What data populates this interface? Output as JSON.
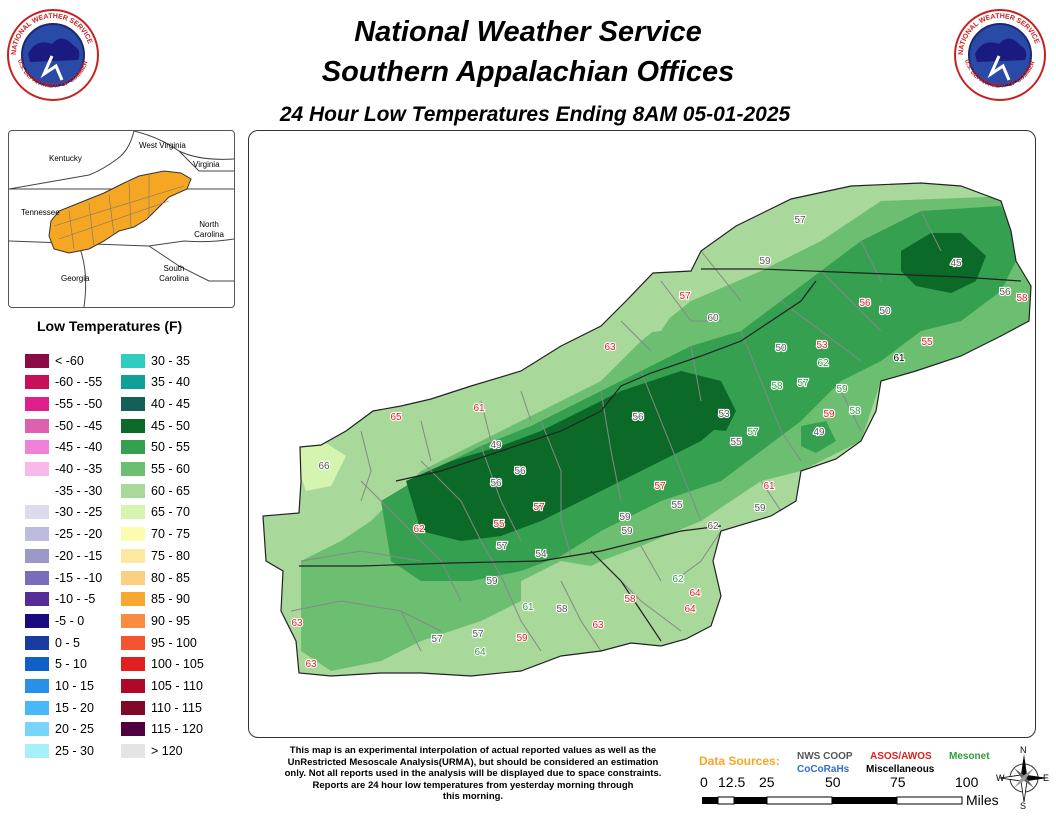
{
  "header": {
    "title_line1": "National Weather Service",
    "title_line2": "Southern Appalachian Offices",
    "subtitle": "24 Hour Low Temperatures Ending 8AM 05-01-2025",
    "logo_text_top": "NATIONAL WEATHER SERVICE",
    "logo_text_bottom": "U.S. DEPARTMENT OF COMMERCE"
  },
  "inset_map": {
    "labels": [
      "West Virginia",
      "Kentucky",
      "Virginia",
      "Tennessee",
      "North Carolina",
      "South Carolina",
      "Georgia"
    ],
    "highlight_color": "#f5a623"
  },
  "legend": {
    "title": "Low Temperatures (F)",
    "col1": [
      {
        "label": "< -60",
        "color": "#8a0a45"
      },
      {
        "label": "-60 - -55",
        "color": "#c8105a"
      },
      {
        "label": "-55 - -50",
        "color": "#e0208a"
      },
      {
        "label": "-50 - -45",
        "color": "#e060b0"
      },
      {
        "label": "-45 - -40",
        "color": "#f080d8"
      },
      {
        "label": "-40 - -35",
        "color": "#f8b8e8"
      },
      {
        "label": "-35 - -30",
        "color": "#ffffff"
      },
      {
        "label": "-30 - -25",
        "color": "#dcdcec"
      },
      {
        "label": "-25 - -20",
        "color": "#bcbcdc"
      },
      {
        "label": "-20 - -15",
        "color": "#9c98c8"
      },
      {
        "label": "-15 - -10",
        "color": "#7a6cbc"
      },
      {
        "label": "-10 - -5",
        "color": "#582c98"
      },
      {
        "label": "-5 - 0",
        "color": "#1a0a80"
      },
      {
        "label": "0 - 5",
        "color": "#1a3ca0"
      },
      {
        "label": "5 - 10",
        "color": "#1060c8"
      },
      {
        "label": "10 - 15",
        "color": "#2890e8"
      },
      {
        "label": "15 - 20",
        "color": "#48b8f8"
      },
      {
        "label": "20 - 25",
        "color": "#78d4f8"
      },
      {
        "label": "25 - 30",
        "color": "#a8f0f8"
      }
    ],
    "col2": [
      {
        "label": "30 - 35",
        "color": "#30ccc0"
      },
      {
        "label": "35 - 40",
        "color": "#10a098"
      },
      {
        "label": "40 - 45",
        "color": "#146058"
      },
      {
        "label": "45 - 50",
        "color": "#0c6a28"
      },
      {
        "label": "50 - 55",
        "color": "#34a050"
      },
      {
        "label": "55 - 60",
        "color": "#6cbe70"
      },
      {
        "label": "60 - 65",
        "color": "#a8d89a"
      },
      {
        "label": "65 - 70",
        "color": "#d4f4b0"
      },
      {
        "label": "70 - 75",
        "color": "#fcfcb0"
      },
      {
        "label": "75 - 80",
        "color": "#fce8a0"
      },
      {
        "label": "80 - 85",
        "color": "#fcd080"
      },
      {
        "label": "85 - 90",
        "color": "#f8a830"
      },
      {
        "label": "90 - 95",
        "color": "#f88c40"
      },
      {
        "label": "95 - 100",
        "color": "#f45430"
      },
      {
        "label": "100 - 105",
        "color": "#e02020"
      },
      {
        "label": "105 - 110",
        "color": "#b00828"
      },
      {
        "label": "110 - 115",
        "color": "#800828"
      },
      {
        "label": "115 - 120",
        "color": "#500040"
      },
      {
        "label": "> 120",
        "color": "#e4e4e4"
      }
    ]
  },
  "map": {
    "colors": {
      "t45": "#0c6a28",
      "t50": "#34a050",
      "t55": "#6cbe70",
      "t60": "#a8d89a",
      "t65": "#d4f4b0",
      "border": "#888888",
      "state": "#222222"
    },
    "observations": [
      {
        "v": "57",
        "src": "coop"
      },
      {
        "v": "59",
        "src": "coop"
      },
      {
        "v": "45",
        "src": "coop"
      },
      {
        "v": "56",
        "src": "coop"
      },
      {
        "v": "58",
        "src": "asos"
      },
      {
        "v": "57",
        "src": "asos"
      },
      {
        "v": "60",
        "src": "coop"
      },
      {
        "v": "56",
        "src": "asos"
      },
      {
        "v": "50",
        "src": "coop"
      },
      {
        "v": "63",
        "src": "asos"
      },
      {
        "v": "53",
        "src": "asos"
      },
      {
        "v": "55",
        "src": "asos"
      },
      {
        "v": "50",
        "src": "coop"
      },
      {
        "v": "62",
        "src": "mesonet"
      },
      {
        "v": "61",
        "src": "misc"
      },
      {
        "v": "58",
        "src": "mesonet"
      },
      {
        "v": "57",
        "src": "mesonet"
      },
      {
        "v": "59",
        "src": "mesonet"
      },
      {
        "v": "65",
        "src": "asos"
      },
      {
        "v": "61",
        "src": "asos"
      },
      {
        "v": "56",
        "src": "coop"
      },
      {
        "v": "53",
        "src": "coop"
      },
      {
        "v": "59",
        "src": "asos"
      },
      {
        "v": "58",
        "src": "mesonet"
      },
      {
        "v": "49",
        "src": "coop"
      },
      {
        "v": "55",
        "src": "coop"
      },
      {
        "v": "57",
        "src": "mesonet"
      },
      {
        "v": "49",
        "src": "coop"
      },
      {
        "v": "66",
        "src": "coop"
      },
      {
        "v": "56",
        "src": "coop"
      },
      {
        "v": "56",
        "src": "coop"
      },
      {
        "v": "57",
        "src": "asos"
      },
      {
        "v": "61",
        "src": "asos"
      },
      {
        "v": "57",
        "src": "asos"
      },
      {
        "v": "55",
        "src": "coop"
      },
      {
        "v": "59",
        "src": "coop"
      },
      {
        "v": "62",
        "src": "asos"
      },
      {
        "v": "55",
        "src": "asos"
      },
      {
        "v": "59",
        "src": "coop"
      },
      {
        "v": "59",
        "src": "coop"
      },
      {
        "v": "62",
        "src": "coop"
      },
      {
        "v": "57",
        "src": "coop"
      },
      {
        "v": "54",
        "src": "coop"
      },
      {
        "v": "59",
        "src": "coop"
      },
      {
        "v": "62",
        "src": "mesonet"
      },
      {
        "v": "64",
        "src": "asos"
      },
      {
        "v": "61",
        "src": "mesonet"
      },
      {
        "v": "58",
        "src": "coop"
      },
      {
        "v": "58",
        "src": "asos"
      },
      {
        "v": "64",
        "src": "asos"
      },
      {
        "v": "63",
        "src": "asos"
      },
      {
        "v": "63",
        "src": "asos"
      },
      {
        "v": "57",
        "src": "coop"
      },
      {
        "v": "57",
        "src": "coop"
      },
      {
        "v": "59",
        "src": "asos"
      },
      {
        "v": "64",
        "src": "mesonet"
      },
      {
        "v": "63",
        "src": "asos"
      }
    ]
  },
  "footer": {
    "disclaimer": [
      "This map is an experimental interpolation of actual reported values as well as the",
      "UnRestricted Mesoscale Analysis(URMA), but should be considered an estimation",
      "only. Not all reports used in the analysis will be displayed due to space constraints.",
      "Reports are 24 hour low temperatures from yesterday morning through",
      "this morning."
    ],
    "sources_label": "Data Sources:",
    "nws_coop": "NWS COOP",
    "asos": "ASOS/AWOS",
    "mesonet": "Mesonet",
    "cocorahs": "CoCoRaHs",
    "misc": "Miscellaneous",
    "scale_ticks": [
      "0",
      "12.5",
      "25",
      "50",
      "75",
      "100"
    ],
    "scale_unit": "Miles",
    "compass": {
      "n": "N",
      "e": "E",
      "s": "S",
      "w": "W"
    },
    "colors": {
      "sources": "#f5a623",
      "coop": "#555555",
      "asos": "#e02020",
      "mesonet": "#2e9e3a",
      "cocorahs": "#2f6fd0",
      "misc": "#000000"
    }
  }
}
